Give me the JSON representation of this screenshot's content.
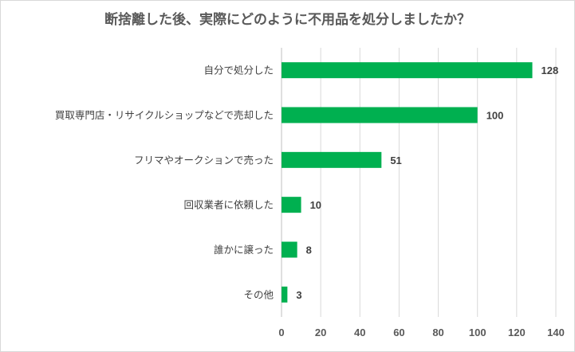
{
  "chart_data": {
    "type": "bar",
    "orientation": "horizontal",
    "title": "断捨離した後、実際にどのように不用品を処分しましたか？",
    "categories": [
      "自分で処分した",
      "買取専門店・リサイクルショップなどで売却した",
      "フリマやオークションで売った",
      "回収業者に依頼した",
      "誰かに譲った",
      "その他"
    ],
    "values": [
      128,
      100,
      51,
      10,
      8,
      3
    ],
    "xlim": [
      0,
      140
    ],
    "xticks": [
      0,
      20,
      40,
      60,
      80,
      100,
      120,
      140
    ],
    "grid": true,
    "bar_color": "#00b050",
    "xlabel": "",
    "ylabel": ""
  }
}
